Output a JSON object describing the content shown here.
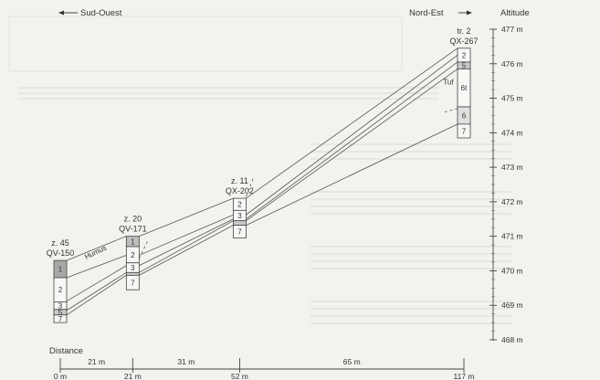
{
  "orientation": {
    "left_label": "Sud-Ouest",
    "right_label": "Nord-Est",
    "axis_title": "Altitude"
  },
  "altitude_axis": {
    "unit": "m",
    "min": 468,
    "max": 477,
    "ticks": [
      "477 m",
      "476 m",
      "475 m",
      "474 m",
      "473 m",
      "472 m",
      "471 m",
      "470 m",
      "469 m",
      "468 m"
    ]
  },
  "distance_axis": {
    "title": "Distance",
    "positions": [
      0,
      21,
      52,
      117
    ],
    "position_labels": [
      "0 m",
      "21 m",
      "52 m",
      "117 m"
    ],
    "segments": [
      "21 m",
      "31 m",
      "65 m"
    ]
  },
  "columns": [
    {
      "id": "z45",
      "name": "z. 45",
      "code": "QV-150",
      "distance_m": 0,
      "top_alt": 470.3,
      "layers": [
        {
          "label": "1",
          "top": 470.3,
          "bottom": 469.8,
          "fill": "#a8a8a8"
        },
        {
          "label": "2",
          "top": 469.8,
          "bottom": 469.1,
          "fill": "#f7f7f5"
        },
        {
          "label": "3",
          "top": 469.1,
          "bottom": 468.88,
          "fill": "#f7f7f5"
        },
        {
          "label": "5",
          "top": 468.88,
          "bottom": 468.72,
          "fill": "#c8c8c8"
        },
        {
          "label": "7",
          "top": 468.72,
          "bottom": 468.5,
          "fill": "#f7f7f5"
        }
      ]
    },
    {
      "id": "z20",
      "name": "z. 20",
      "code": "QV-171",
      "distance_m": 21,
      "top_alt": 471.0,
      "layers": [
        {
          "label": "1",
          "top": 471.0,
          "bottom": 470.7,
          "fill": "#bdbdbd"
        },
        {
          "label": "2",
          "top": 470.7,
          "bottom": 470.23,
          "fill": "#f7f7f5"
        },
        {
          "label": "3",
          "top": 470.23,
          "bottom": 469.95,
          "fill": "#f7f7f5"
        },
        {
          "label": "",
          "top": 469.95,
          "bottom": 469.87,
          "fill": "#c8c8c8"
        },
        {
          "label": "7",
          "top": 469.87,
          "bottom": 469.45,
          "fill": "#f7f7f5"
        }
      ]
    },
    {
      "id": "z11",
      "name": "z. 11",
      "code": "QX-202",
      "distance_m": 52,
      "top_alt": 472.1,
      "layers": [
        {
          "label": "2",
          "top": 472.1,
          "bottom": 471.75,
          "fill": "#f7f7f5"
        },
        {
          "label": "3",
          "top": 471.75,
          "bottom": 471.45,
          "fill": "#f7f7f5"
        },
        {
          "label": "",
          "top": 471.45,
          "bottom": 471.32,
          "fill": "#c8c8c8"
        },
        {
          "label": "7",
          "top": 471.32,
          "bottom": 470.95,
          "fill": "#f7f7f5"
        }
      ]
    },
    {
      "id": "tr2",
      "name": "tr. 2",
      "code": "QX-267",
      "distance_m": 117,
      "top_alt": 476.45,
      "layers": [
        {
          "label": "2",
          "top": 476.45,
          "bottom": 476.05,
          "fill": "#f7f7f5"
        },
        {
          "label": "5",
          "top": 476.05,
          "bottom": 475.85,
          "fill": "#c8c8c8"
        },
        {
          "label": "6t",
          "top": 475.85,
          "bottom": 474.75,
          "fill": "#f7f7f5"
        },
        {
          "label": "6",
          "top": 474.75,
          "bottom": 474.25,
          "fill": "#e0e0de"
        },
        {
          "label": "7",
          "top": 474.25,
          "bottom": 473.85,
          "fill": "#f7f7f5"
        }
      ]
    }
  ],
  "correlation_lines": [
    {
      "from": [
        "z45",
        470.3
      ],
      "to": [
        "z20",
        471.0
      ]
    },
    {
      "from": [
        "z20",
        471.0
      ],
      "to": [
        "z11",
        472.1
      ]
    },
    {
      "from": [
        "z11",
        472.1
      ],
      "to": [
        "tr2",
        476.45
      ]
    },
    {
      "from": [
        "z45",
        469.8
      ],
      "to": [
        "z20",
        470.45
      ]
    },
    {
      "from": [
        "z20",
        470.45
      ],
      "to": [
        "z11",
        471.62
      ]
    },
    {
      "from": [
        "z11",
        471.62
      ],
      "to": [
        "tr2",
        476.25
      ]
    },
    {
      "from": [
        "z45",
        469.12
      ],
      "to": [
        "z20",
        470.15
      ]
    },
    {
      "from": [
        "z20",
        470.15
      ],
      "to": [
        "z11",
        471.5
      ]
    },
    {
      "from": [
        "z11",
        471.5
      ],
      "to": [
        "tr2",
        476.05
      ]
    },
    {
      "from": [
        "z45",
        468.85
      ],
      "to": [
        "z20",
        469.95
      ]
    },
    {
      "from": [
        "z20",
        469.95
      ],
      "to": [
        "z11",
        471.45
      ]
    },
    {
      "from": [
        "z11",
        471.45
      ],
      "to": [
        "tr2",
        475.85
      ]
    },
    {
      "from": [
        "z45",
        468.72
      ],
      "to": [
        "z20",
        469.87
      ]
    },
    {
      "from": [
        "z20",
        469.87
      ],
      "to": [
        "z11",
        471.32
      ]
    },
    {
      "from": [
        "z11",
        471.32
      ],
      "to": [
        "tr2",
        474.25
      ]
    }
  ],
  "dashed_lines": [
    {
      "start": [
        21,
        470.35
      ],
      "end": [
        25.5,
        470.9
      ]
    },
    {
      "start": [
        52,
        472.15
      ],
      "end": [
        56,
        472.7
      ]
    },
    {
      "start": [
        109.5,
        474.6
      ],
      "end": [
        117,
        474.7
      ]
    }
  ],
  "annotations": {
    "humus": {
      "text": "Humus",
      "distance_m": 7.5,
      "alt": 470.33
    },
    "tuf": {
      "text": "Tuf",
      "distance_m": 111,
      "alt": 475.4
    }
  }
}
